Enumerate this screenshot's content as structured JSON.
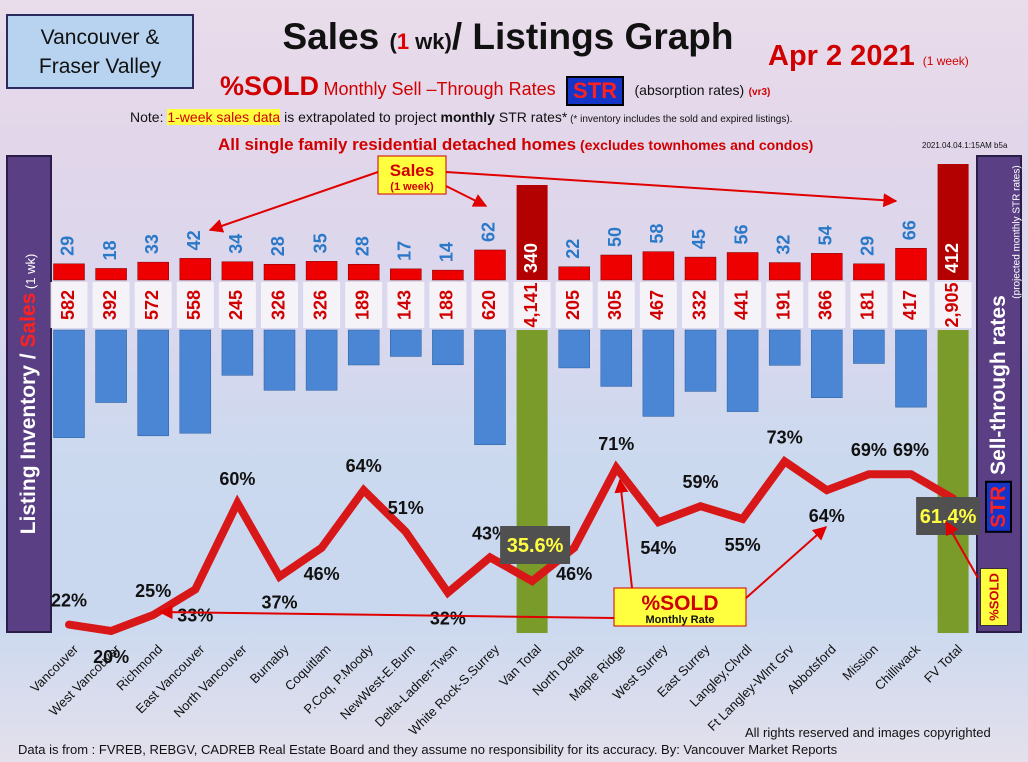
{
  "header": {
    "region_line1": "Vancouver &",
    "region_line2": "Fraser Valley",
    "title_part1": "Sales ",
    "title_paren_open": "(",
    "title_one": "1",
    "title_wk": " wk)",
    "title_part2": "/ Listings Graph",
    "date": "Apr 2  2021",
    "date_note": "(1 week)",
    "sold_label": "%SOLD",
    "sell_through_label": "Monthly Sell –Through Rates",
    "str_badge": "STR",
    "absorption": "(absorption rates)",
    "version": "(vr3)",
    "note_prefix": "Note: ",
    "note_highlight": "1-week sales data",
    "note_middle": " is extrapolated to project ",
    "note_monthly": "monthly",
    "note_suffix": " STR rates*",
    "note_footnote": " (* inventory includes the sold and expired listings).",
    "homes_main": "All single family residential detached homes",
    "homes_sub": " (excludes townhomes and condos)",
    "timestamp": "2021.04.04.1:15AM b5a"
  },
  "left_axis": {
    "part1": "Listing Inventory ",
    "slash": "/ ",
    "part2": "Sales",
    "part3": " (1 wk)"
  },
  "right_axis": {
    "label": "Sell-through rates",
    "str": "STR",
    "sub": "(projected monthly STR rates)",
    "sold": "%SOLD"
  },
  "annotations": {
    "sales_label": "Sales",
    "sales_sub": "(1 week)",
    "sold_callout": "%SOLD",
    "sold_callout_sub": "Monthly Rate"
  },
  "footer": {
    "rights": "All rights reserved and  images copyrighted",
    "source": "Data is from : FVREB, REBGV, CADREB Real Estate Board and they assume no responsibility for its accuracy. By: Vancouver Market Reports"
  },
  "colors": {
    "sales_bar": "#ee0000",
    "inventory_bar": "#4a86d4",
    "total_bar": "#7a9a2a",
    "str_line": "#d81818",
    "sales_text": "#2a78c8",
    "inventory_text": "#d00000"
  },
  "chart_data": {
    "type": "bar",
    "categories": [
      "Vancouver",
      "West Vancouver",
      "Richmond",
      "East Vancouver",
      "North Vancouver",
      "Burnaby",
      "Coquitlam",
      "P.Coq, P.Moody",
      "NewWest-E.Burn",
      "Delta-Ladner-Twsn",
      "White Rock-S.Surrey",
      "Van Total",
      "North Delta",
      "Maple Ridge",
      "West Surrey",
      "East Surrey",
      "Langley,Clvrdl",
      "Ft Langley-Wlnt Grv",
      "Abbotsford",
      "Mission",
      "Chilliwack",
      "FV Total"
    ],
    "series": [
      {
        "name": "Sales",
        "values": [
          29,
          18,
          33,
          42,
          34,
          28,
          35,
          28,
          17,
          14,
          62,
          340,
          22,
          50,
          58,
          45,
          56,
          32,
          54,
          29,
          66,
          412
        ]
      },
      {
        "name": "Listing Inventory",
        "values": [
          582,
          392,
          572,
          558,
          245,
          326,
          326,
          189,
          143,
          188,
          620,
          4141,
          205,
          305,
          467,
          332,
          441,
          191,
          366,
          181,
          417,
          2905
        ]
      },
      {
        "name": "%SOLD",
        "values": [
          22,
          20,
          25,
          33,
          60,
          37,
          46,
          64,
          51,
          32,
          43,
          35.6,
          46,
          71,
          54,
          59,
          55,
          73,
          64,
          69,
          69,
          61.4
        ]
      }
    ],
    "sales_labels": [
      "29",
      "18",
      "33",
      "42",
      "34",
      "28",
      "35",
      "28",
      "17",
      "14",
      "62",
      "340",
      "22",
      "50",
      "58",
      "45",
      "56",
      "32",
      "54",
      "29",
      "66",
      "412"
    ],
    "inventory_labels": [
      "582",
      "392",
      "572",
      "558",
      "245",
      "326",
      "326",
      "189",
      "143",
      "188",
      "620",
      "4,141",
      "205",
      "305",
      "467",
      "332",
      "441",
      "191",
      "366",
      "181",
      "417",
      "2,905"
    ],
    "sold_labels": [
      "22%",
      "20%",
      "25%",
      "33%",
      "60%",
      "37%",
      "46%",
      "64%",
      "51%",
      "32%",
      "43%",
      "35.6%",
      "46%",
      "71%",
      "54%",
      "59%",
      "55%",
      "73%",
      "64%",
      "69%",
      "69%",
      "61.4%"
    ],
    "ylabel": "Listing Inventory / Sales (1 wk)",
    "y2label": "Sell-through rates",
    "grid": false,
    "legend": "none"
  }
}
